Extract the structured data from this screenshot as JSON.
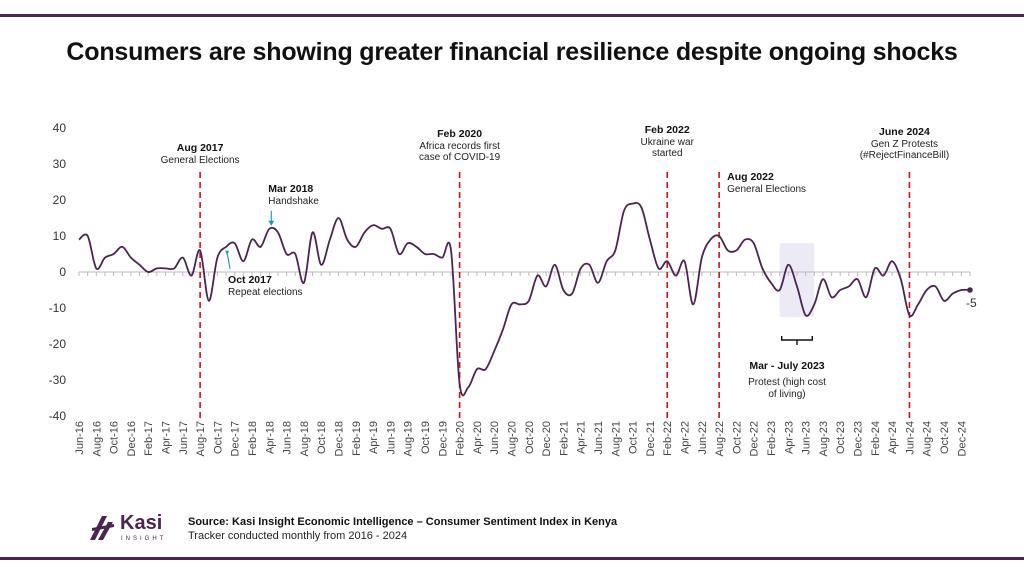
{
  "title": "Consumers are showing greater financial resilience despite ongoing shocks",
  "footer": {
    "brand": "Kasi",
    "brand_sub": "INSIGHT",
    "source": "Source: Kasi Insight Economic Intelligence – Consumer Sentiment Index in Kenya",
    "tracker": "Tracker conducted monthly from 2016 - 2024"
  },
  "colors": {
    "line": "#4a2550",
    "event": "#d0111b",
    "band": "#eceaf4",
    "arrow": "#1a9aa0",
    "accent": "#4a2550"
  },
  "chart_data": {
    "type": "line",
    "title": "Consumer Sentiment Index in Kenya",
    "ylim": [
      -40,
      40
    ],
    "yticks": [
      40,
      30,
      20,
      10,
      0,
      -10,
      -20,
      -30,
      -40
    ],
    "xlabels": [
      "Jun-16",
      "Aug-16",
      "Oct-16",
      "Dec-16",
      "Feb-17",
      "Apr-17",
      "Jun-17",
      "Aug-17",
      "Oct-17",
      "Dec-17",
      "Feb-18",
      "Apr-18",
      "Jun-18",
      "Aug-18",
      "Oct-18",
      "Dec-18",
      "Feb-19",
      "Apr-19",
      "Jun-19",
      "Aug-19",
      "Oct-19",
      "Dec-19",
      "Feb-20",
      "Apr-20",
      "Jun-20",
      "Aug-20",
      "Oct-20",
      "Dec-20",
      "Feb-21",
      "Apr-21",
      "Jun-21",
      "Aug-21",
      "Oct-21",
      "Dec-21",
      "Feb-22",
      "Apr-22",
      "Jun-22",
      "Aug-22",
      "Oct-22",
      "Dec-22",
      "Feb-23",
      "Apr-23",
      "Jun-23",
      "Aug-23",
      "Oct-23",
      "Dec-23",
      "Feb-24",
      "Apr-24",
      "Jun-24",
      "Aug-24",
      "Oct-24",
      "Dec-24"
    ],
    "series": [
      {
        "name": "Consumer Sentiment Index",
        "values": [
          9,
          10,
          1,
          4,
          5,
          7,
          4,
          2,
          0,
          1,
          1,
          1,
          4,
          -1,
          6,
          -8,
          4,
          7,
          8,
          3,
          9,
          7,
          12,
          11,
          5,
          5,
          -3,
          11,
          2,
          9,
          15,
          9,
          7,
          11,
          13,
          12,
          12,
          5,
          8,
          7,
          5,
          5,
          4,
          6,
          -31,
          -32,
          -27,
          -27,
          -22,
          -16,
          -9,
          -9,
          -8,
          -1,
          -4,
          2,
          -5,
          -6,
          1,
          2,
          -3,
          3,
          6,
          17,
          19,
          18,
          9,
          1,
          3,
          -1,
          3,
          -9,
          4,
          9,
          10,
          6,
          6,
          9,
          8,
          1,
          -3,
          -5,
          2,
          -4,
          -12,
          -9,
          -2,
          -7,
          -5,
          -4,
          -2,
          -7,
          1,
          -1,
          3,
          -2,
          -12,
          -9,
          -5,
          -4,
          -8,
          -6,
          -5,
          -5
        ],
        "end_label": "-5"
      }
    ],
    "events": [
      {
        "idx": 14,
        "title": "Aug 2017",
        "text": [
          "General Elections"
        ]
      },
      {
        "idx": 44,
        "title": "Feb 2020",
        "text": [
          "Africa records first",
          "case of COVID-19"
        ]
      },
      {
        "idx": 68,
        "title": "Feb 2022",
        "text": [
          "Ukraine war",
          "started"
        ]
      },
      {
        "idx": 74,
        "title": "Aug 2022",
        "text": [
          "General Elections"
        ]
      },
      {
        "idx": 96,
        "title": "June 2024",
        "text": [
          "Gen Z Protests",
          "(#RejectFinanceBill)"
        ]
      }
    ],
    "point_annotations": [
      {
        "idx": 17,
        "title": "Oct 2017",
        "text": [
          "Repeat elections"
        ],
        "placement": "below"
      },
      {
        "idx": 22,
        "title": "Mar 2018",
        "text": [
          "Handshake"
        ],
        "placement": "above"
      }
    ],
    "band": {
      "start": 81,
      "end": 85,
      "title": "Mar - July 2023",
      "text": [
        "Protest (high cost",
        "of living)"
      ]
    }
  }
}
